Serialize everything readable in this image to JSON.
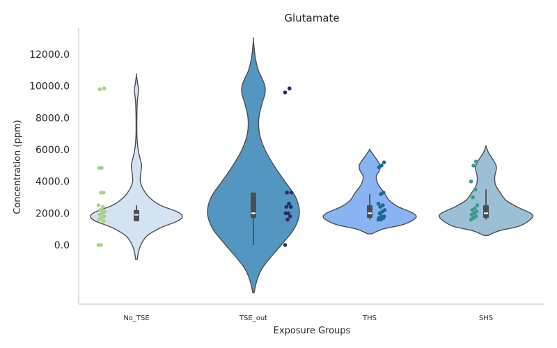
{
  "chart_data": {
    "type": "violin",
    "title": "Glutamate",
    "xlabel": "Exposure Groups",
    "ylabel": "Concentration (ppm)",
    "ylim": [
      -3800,
      13800
    ],
    "yticks": [
      0,
      2000,
      4000,
      6000,
      8000,
      10000,
      12000
    ],
    "ytick_labels": [
      "0.0",
      "2000.0",
      "4000.0",
      "6000.0",
      "8000.0",
      "10000.0",
      "12000.0"
    ],
    "grid": false,
    "categories": [
      "No_TSE",
      "TSE_out",
      "THS",
      "SHS"
    ],
    "series": [
      {
        "category": "No_TSE",
        "violin_color": "#d4e3f2",
        "point_color": "#a5d38a",
        "kde_range": [
          -900,
          10700
        ],
        "density": [
          [
            -900,
            2
          ],
          [
            -400,
            5
          ],
          [
            100,
            12
          ],
          [
            600,
            26
          ],
          [
            1100,
            58
          ],
          [
            1500,
            96
          ],
          [
            1800,
            108
          ],
          [
            2100,
            95
          ],
          [
            2500,
            56
          ],
          [
            3000,
            30
          ],
          [
            3500,
            16
          ],
          [
            4000,
            9
          ],
          [
            4500,
            10
          ],
          [
            5000,
            12
          ],
          [
            5500,
            8
          ],
          [
            6000,
            4
          ],
          [
            6500,
            2
          ],
          [
            7000,
            1
          ],
          [
            8000,
            1
          ],
          [
            9000,
            2
          ],
          [
            9500,
            4
          ],
          [
            9800,
            5
          ],
          [
            10100,
            3
          ],
          [
            10700,
            0
          ]
        ],
        "quartiles": [
          1500,
          1900,
          2200
        ],
        "whisker": [
          1500,
          2500
        ],
        "points": [
          0,
          0,
          1500,
          1600,
          1700,
          1800,
          1900,
          2000,
          2100,
          2200,
          2400,
          2500,
          3300,
          3300,
          4850,
          4850,
          9850,
          9800
        ]
      },
      {
        "category": "TSE_out",
        "violin_color": "#5496c2",
        "point_color": "#2e2a63",
        "kde_range": [
          -3000,
          12900
        ],
        "density": [
          [
            -3000,
            1
          ],
          [
            -2200,
            6
          ],
          [
            -1500,
            14
          ],
          [
            -800,
            28
          ],
          [
            0,
            46
          ],
          [
            1000,
            67
          ],
          [
            2000,
            76
          ],
          [
            3000,
            70
          ],
          [
            4000,
            52
          ],
          [
            5000,
            34
          ],
          [
            6000,
            19
          ],
          [
            7000,
            10
          ],
          [
            8000,
            9
          ],
          [
            9000,
            15
          ],
          [
            9500,
            19
          ],
          [
            10000,
            19
          ],
          [
            10500,
            14
          ],
          [
            11000,
            8
          ],
          [
            11800,
            3
          ],
          [
            12900,
            0
          ]
        ],
        "quartiles": [
          1700,
          2000,
          3300
        ],
        "whisker": [
          0,
          3300
        ],
        "points": [
          0,
          1600,
          1800,
          2000,
          2000,
          2400,
          2400,
          2600,
          3300,
          3300,
          9850,
          9600
        ]
      },
      {
        "category": "THS",
        "violin_color": "#88b4f3",
        "point_color": "#1b6a96",
        "kde_range": [
          700,
          6000
        ],
        "density": [
          [
            700,
            3
          ],
          [
            1000,
            20
          ],
          [
            1300,
            52
          ],
          [
            1700,
            70
          ],
          [
            2000,
            66
          ],
          [
            2400,
            44
          ],
          [
            2800,
            30
          ],
          [
            3300,
            22
          ],
          [
            3800,
            13
          ],
          [
            4300,
            10
          ],
          [
            4700,
            15
          ],
          [
            5000,
            16
          ],
          [
            5300,
            12
          ],
          [
            5700,
            5
          ],
          [
            6000,
            0
          ]
        ],
        "quartiles": [
          1700,
          2000,
          2500
        ],
        "whisker": [
          1600,
          3200
        ],
        "points": [
          1600,
          1600,
          1700,
          1700,
          1800,
          1800,
          2000,
          2100,
          2200,
          2400,
          2500,
          2600,
          3200,
          3300,
          4900,
          5000,
          5200
        ]
      },
      {
        "category": "SHS",
        "violin_color": "#9bc0d6",
        "point_color": "#3b9a8b",
        "kde_range": [
          600,
          6200
        ],
        "density": [
          [
            600,
            3
          ],
          [
            900,
            20
          ],
          [
            1200,
            50
          ],
          [
            1700,
            68
          ],
          [
            2000,
            66
          ],
          [
            2400,
            46
          ],
          [
            2800,
            30
          ],
          [
            3300,
            21
          ],
          [
            3800,
            14
          ],
          [
            4300,
            13
          ],
          [
            4700,
            15
          ],
          [
            5000,
            15
          ],
          [
            5400,
            10
          ],
          [
            5800,
            4
          ],
          [
            6200,
            0
          ]
        ],
        "quartiles": [
          1700,
          2000,
          2500
        ],
        "whisker": [
          1600,
          3500
        ],
        "points": [
          1600,
          1700,
          1800,
          1900,
          2000,
          2100,
          2200,
          2300,
          2500,
          3000,
          3500,
          4000,
          5000,
          5250
        ]
      }
    ]
  }
}
